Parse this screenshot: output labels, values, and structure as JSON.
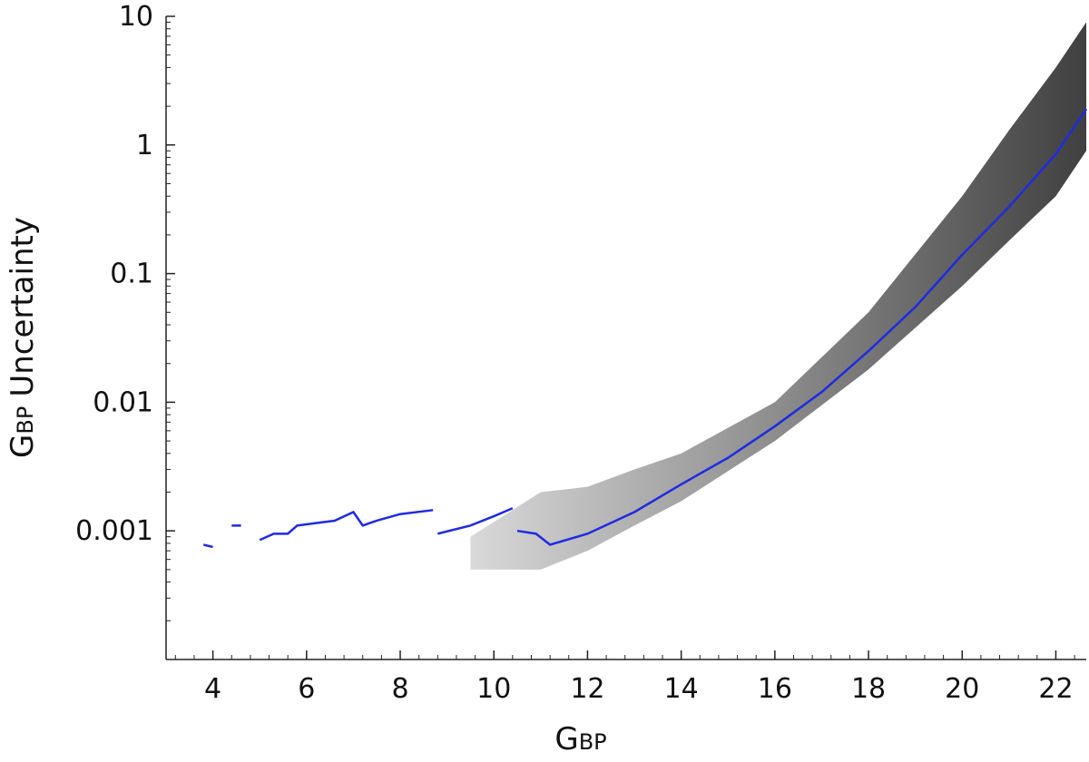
{
  "chart_data": {
    "type": "line",
    "x_label": {
      "main": "G",
      "sub": "BP"
    },
    "y_label": {
      "main": "G",
      "sub": "BP",
      "rest": "Uncertainty"
    },
    "xlim": [
      3,
      22.65
    ],
    "xticks": [
      4,
      6,
      8,
      10,
      12,
      14,
      16,
      18,
      20,
      22
    ],
    "ylim": [
      0.0001,
      10
    ],
    "yticks": [
      0.001,
      0.01,
      0.1,
      1,
      10
    ],
    "log_y": true,
    "series": [
      {
        "color": "#1f2be0",
        "x": [
          3.8,
          4.0,
          null,
          4.4,
          4.6,
          null,
          5.0,
          5.3,
          5.6,
          5.8,
          6.2,
          6.6,
          7.0,
          7.2,
          7.5,
          8.0,
          8.7,
          null,
          8.8,
          9.5,
          10.0,
          10.4,
          null,
          10.5,
          10.9,
          11.2,
          12,
          13,
          14,
          15,
          16,
          17,
          18,
          19,
          20,
          21,
          22,
          22.65
        ],
        "values": [
          0.00078,
          0.00075,
          null,
          0.0011,
          0.0011,
          null,
          0.00085,
          0.00095,
          0.00095,
          0.0011,
          0.00115,
          0.0012,
          0.0014,
          0.0011,
          0.0012,
          0.00135,
          0.00145,
          null,
          0.00095,
          0.0011,
          0.0013,
          0.0015,
          null,
          0.001,
          0.00095,
          0.00078,
          0.00095,
          0.0014,
          0.0023,
          0.0037,
          0.0065,
          0.012,
          0.025,
          0.055,
          0.14,
          0.33,
          0.85,
          1.9
        ]
      }
    ],
    "band": {
      "color": "#333333",
      "x": [
        9.5,
        11,
        12,
        13,
        14,
        16,
        18,
        20,
        21,
        22,
        22.65
      ],
      "lower": [
        0.0005,
        0.0005,
        0.0007,
        0.0011,
        0.0017,
        0.005,
        0.018,
        0.08,
        0.18,
        0.4,
        0.9
      ],
      "upper": [
        0.0009,
        0.002,
        0.0022,
        0.003,
        0.004,
        0.01,
        0.05,
        0.4,
        1.3,
        4,
        9
      ]
    }
  }
}
